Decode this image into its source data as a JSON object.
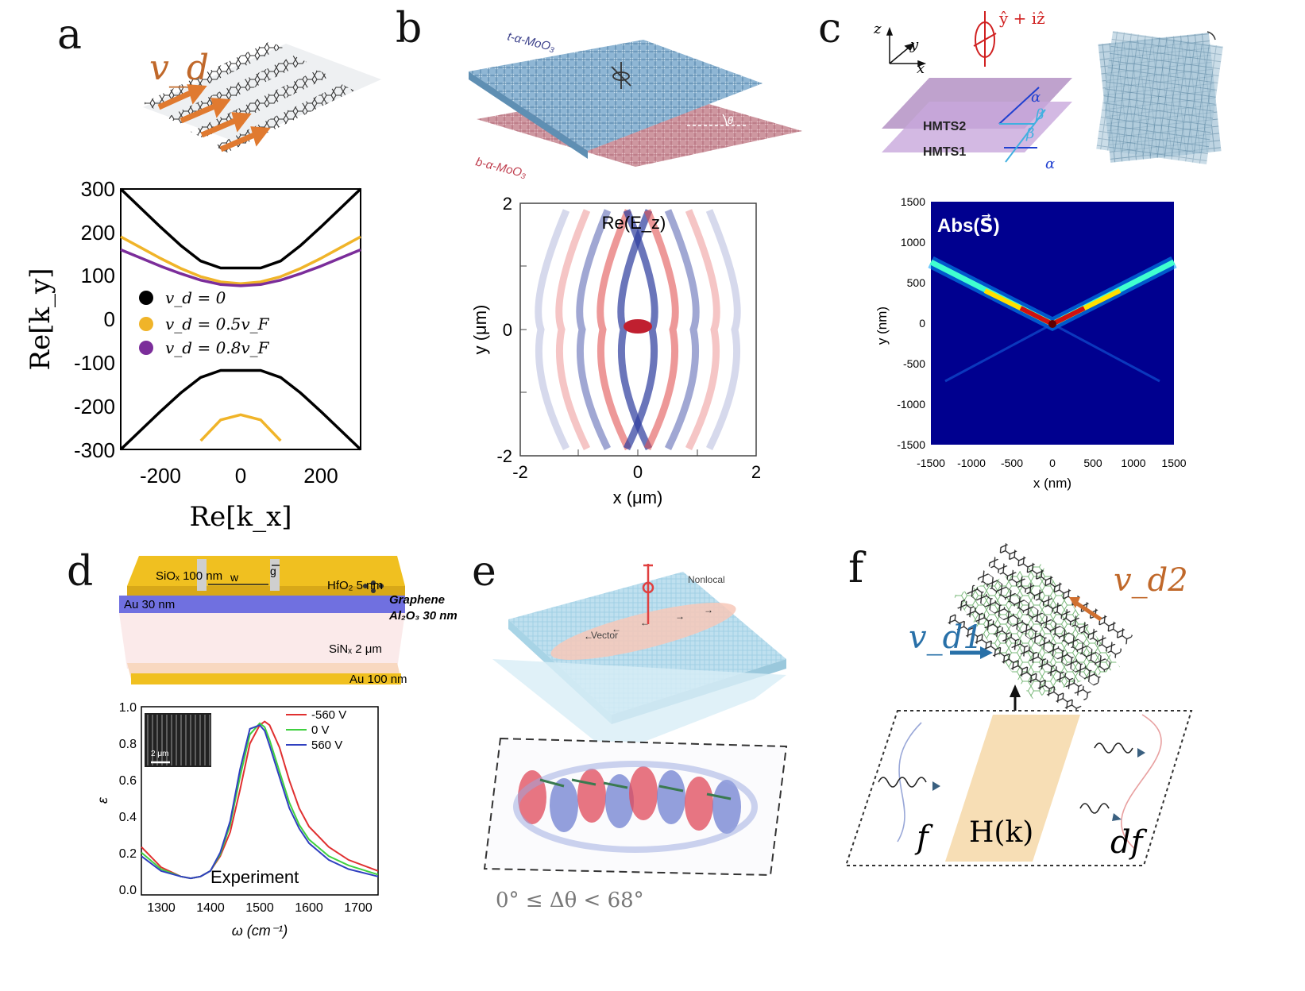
{
  "panels": {
    "a": {
      "letter": "a",
      "velocity_label": "v_d",
      "chart_data": {
        "type": "line",
        "xlabel": "Re[k_x]",
        "ylabel": "Re[k_y]",
        "xlim": [
          -300,
          300
        ],
        "ylim": [
          -300,
          300
        ],
        "xticks": [
          "-200",
          "0",
          "200"
        ],
        "yticks": [
          "300",
          "200",
          "100",
          "0",
          "-100",
          "-200",
          "-300"
        ],
        "legend": [
          "v_d = 0",
          "v_d = 0.5v_F",
          "v_d = 0.8v_F"
        ],
        "colors": [
          "#000000",
          "#f0b429",
          "#7b2d9a"
        ],
        "series": [
          {
            "name": "v_d = 0",
            "x": [
              -300,
              -250,
              -200,
              -150,
              -100,
              -50,
              0,
              50,
              100,
              150,
              200,
              250,
              300
            ],
            "y_upper": [
              300,
              256,
              212,
              170,
              134,
              118,
              118,
              118,
              134,
              170,
              212,
              256,
              300
            ],
            "y_lower": [
              -300,
              -256,
              -212,
              -170,
              -134,
              -118,
              -118,
              -118,
              -134,
              -170,
              -212,
              -256,
              -300
            ]
          },
          {
            "name": "v_d = 0.5v_F",
            "x": [
              -300,
              -250,
              -200,
              -150,
              -100,
              -50,
              0,
              50,
              100,
              150,
              200,
              250,
              300
            ],
            "y_upper": [
              190,
              165,
              140,
              117,
              98,
              86,
              82,
              86,
              98,
              117,
              140,
              165,
              190
            ],
            "y_lower": [
              null,
              null,
              null,
              null,
              -280,
              -232,
              -220,
              -232,
              -280,
              null,
              null,
              null,
              null
            ]
          },
          {
            "name": "v_d = 0.8v_F",
            "x": [
              -300,
              -250,
              -200,
              -150,
              -100,
              -50,
              0,
              50,
              100,
              150,
              200,
              250,
              300
            ],
            "y_upper": [
              160,
              141,
              122,
              105,
              90,
              80,
              77,
              80,
              90,
              105,
              122,
              141,
              160
            ]
          }
        ]
      }
    },
    "b": {
      "letter": "b",
      "top_label": "t-α-MoO₃",
      "bottom_label": "b-α-MoO₃",
      "angle_label": "θ",
      "field_label": "Re(E_z)",
      "chart_data": {
        "type": "heatmap",
        "xlabel": "x (μm)",
        "ylabel": "y (μm)",
        "xlim": [
          -2,
          2
        ],
        "ylim": [
          -2,
          2
        ],
        "xticks": [
          "-2",
          "0",
          "2"
        ],
        "yticks": [
          "2",
          "0",
          "-2"
        ]
      }
    },
    "c": {
      "letter": "c",
      "polarization_label": "ŷ + iẑ",
      "axis_z": "z",
      "axis_y": "y",
      "axis_x": "x",
      "layer_top": "HMTS2",
      "layer_bottom": "HMTS1",
      "alpha": "α",
      "beta": "β",
      "field_label": "Abs(S⃗)",
      "chart_data": {
        "type": "heatmap",
        "xlabel": "x (nm)",
        "ylabel": "y (nm)",
        "xlim": [
          -1500,
          1500
        ],
        "ylim": [
          -1500,
          1500
        ],
        "xticks": [
          "-1500",
          "-1000",
          "-500",
          "0",
          "500",
          "1000",
          "1500"
        ],
        "yticks": [
          "1500",
          "1000",
          "500",
          "0",
          "-500",
          "-1000",
          "-1500"
        ]
      }
    },
    "d": {
      "letter": "d",
      "labels": {
        "siox": "SiOₓ 100 nm",
        "g": "g",
        "w": "w",
        "hfo2": "HfO₂ 5 nm",
        "graphene": "Graphene",
        "au30": "Au 30 nm",
        "al2o3": "Al₂O₃ 30 nm",
        "sinx": "SiNₓ 2 μm",
        "au100": "Au 100 nm",
        "scale": "2 μm",
        "experiment": "Experiment"
      },
      "chart_data": {
        "type": "line",
        "xlabel": "ω (cm⁻¹)",
        "ylabel": "ε",
        "xlim": [
          1260,
          1740
        ],
        "ylim": [
          -0.02,
          1.0
        ],
        "xticks": [
          "1300",
          "1400",
          "1500",
          "1600",
          "1700"
        ],
        "yticks": [
          "1.0",
          "0.8",
          "0.6",
          "0.4",
          "0.2",
          "0.0"
        ],
        "legend": [
          "-560 V",
          "0 V",
          "560 V"
        ],
        "colors": [
          "#e03030",
          "#40d040",
          "#3040c0"
        ],
        "series": [
          {
            "name": "-560 V",
            "x": [
              1260,
              1300,
              1340,
              1360,
              1380,
              1400,
              1420,
              1440,
              1460,
              1480,
              1500,
              1510,
              1520,
              1540,
              1560,
              1580,
              1600,
              1640,
              1680,
              1740
            ],
            "y": [
              0.24,
              0.13,
              0.08,
              0.07,
              0.08,
              0.11,
              0.19,
              0.32,
              0.55,
              0.8,
              0.9,
              0.92,
              0.9,
              0.78,
              0.6,
              0.45,
              0.35,
              0.24,
              0.17,
              0.11
            ]
          },
          {
            "name": "0 V",
            "x": [
              1260,
              1300,
              1340,
              1360,
              1380,
              1400,
              1420,
              1440,
              1460,
              1480,
              1500,
              1510,
              1520,
              1540,
              1560,
              1580,
              1600,
              1640,
              1680,
              1740
            ],
            "y": [
              0.21,
              0.12,
              0.08,
              0.07,
              0.08,
              0.11,
              0.2,
              0.36,
              0.62,
              0.85,
              0.91,
              0.89,
              0.82,
              0.65,
              0.48,
              0.36,
              0.28,
              0.19,
              0.14,
              0.09
            ]
          },
          {
            "name": "560 V",
            "x": [
              1260,
              1300,
              1340,
              1360,
              1380,
              1400,
              1420,
              1440,
              1460,
              1480,
              1500,
              1510,
              1520,
              1540,
              1560,
              1580,
              1600,
              1640,
              1680,
              1740
            ],
            "y": [
              0.19,
              0.11,
              0.08,
              0.07,
              0.08,
              0.11,
              0.21,
              0.38,
              0.66,
              0.88,
              0.9,
              0.87,
              0.79,
              0.62,
              0.45,
              0.34,
              0.26,
              0.17,
              0.12,
              0.08
            ]
          }
        ]
      }
    },
    "e": {
      "letter": "e",
      "nonlocal": "Nonlocal",
      "vector": "Vector",
      "angle_range": "0° ≤ Δθ < 68°"
    },
    "f": {
      "letter": "f",
      "vd1": "v_d1",
      "vd2": "v_d2",
      "f": "f",
      "hk": "H(k)",
      "df": "df"
    }
  }
}
